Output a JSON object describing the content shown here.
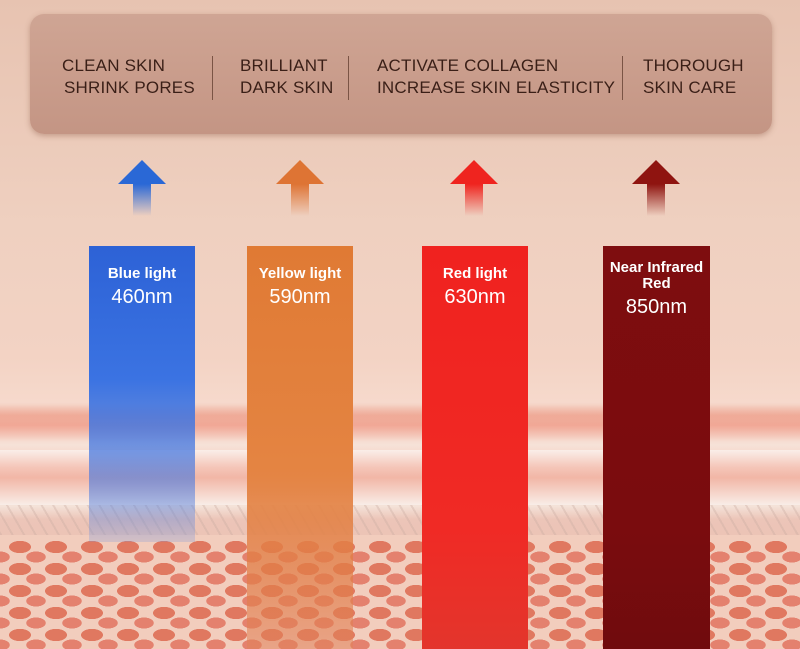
{
  "benefits": [
    {
      "line1": "CLEAN SKIN",
      "line2": "SHRINK PORES"
    },
    {
      "line1": "BRILLIANT",
      "line2": "DARK SKIN"
    },
    {
      "line1": "ACTIVATE COLLAGEN",
      "line2": "INCREASE SKIN ELASTICITY"
    },
    {
      "line1": "THOROUGH",
      "line2": "SKIN CARE"
    }
  ],
  "lights": [
    {
      "name": "Blue light",
      "wavelength": "460nm",
      "color": "#2f66d8",
      "arrow_color": "#2a68d6"
    },
    {
      "name": "Yellow light",
      "wavelength": "590nm",
      "color": "#e07a34",
      "arrow_color": "#de7434"
    },
    {
      "name": "Red light",
      "wavelength": "630nm",
      "color": "#f0221f",
      "arrow_color": "#ef241f"
    },
    {
      "name": "Near Infrared Red",
      "name_line1": "Near Infrared",
      "name_line2": "Red",
      "wavelength": "850nm",
      "color": "#7e0d0f",
      "arrow_color": "#8f1410"
    }
  ]
}
